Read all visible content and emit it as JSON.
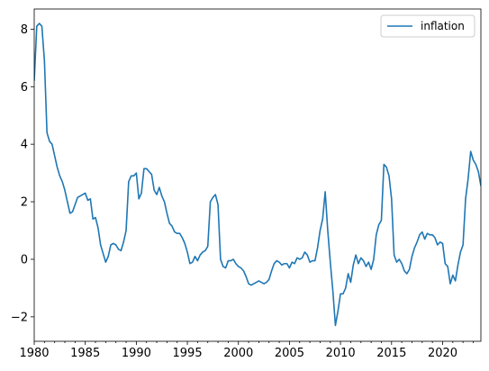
{
  "chart_data": {
    "type": "line",
    "title": "",
    "xlabel": "",
    "ylabel": "",
    "xlim": [
      1980.0,
      2023.75
    ],
    "ylim": [
      -2.85,
      8.7
    ],
    "legend": {
      "position": "top-right",
      "entries": [
        "inflation"
      ]
    },
    "grid": false,
    "x_ticks": [
      1980,
      1985,
      1990,
      1995,
      2000,
      2005,
      2010,
      2015,
      2020
    ],
    "x_tick_labels": [
      "1980",
      "1985",
      "1990",
      "1995",
      "2000",
      "2005",
      "2010",
      "2015",
      "2020"
    ],
    "y_ticks": [
      -2,
      0,
      2,
      4,
      6,
      8
    ],
    "y_tick_labels": [
      "−2",
      "0",
      "2",
      "4",
      "6",
      "8"
    ],
    "series": [
      {
        "name": "inflation",
        "color": "#1f77b4",
        "points": [
          [
            1980.0,
            6.2
          ],
          [
            1980.25,
            8.1
          ],
          [
            1980.5,
            8.2
          ],
          [
            1980.75,
            8.1
          ],
          [
            1981.0,
            6.9
          ],
          [
            1981.25,
            4.4
          ],
          [
            1981.5,
            4.1
          ],
          [
            1981.75,
            4.0
          ],
          [
            1982.0,
            3.6
          ],
          [
            1982.25,
            3.2
          ],
          [
            1982.5,
            2.9
          ],
          [
            1982.75,
            2.7
          ],
          [
            1983.0,
            2.4
          ],
          [
            1983.25,
            2.0
          ],
          [
            1983.5,
            1.6
          ],
          [
            1983.75,
            1.65
          ],
          [
            1984.0,
            1.9
          ],
          [
            1984.25,
            2.15
          ],
          [
            1984.5,
            2.2
          ],
          [
            1984.75,
            2.25
          ],
          [
            1985.0,
            2.3
          ],
          [
            1985.25,
            2.05
          ],
          [
            1985.5,
            2.1
          ],
          [
            1985.75,
            1.4
          ],
          [
            1986.0,
            1.45
          ],
          [
            1986.25,
            1.1
          ],
          [
            1986.5,
            0.5
          ],
          [
            1986.75,
            0.2
          ],
          [
            1987.0,
            -0.1
          ],
          [
            1987.25,
            0.1
          ],
          [
            1987.5,
            0.5
          ],
          [
            1987.75,
            0.55
          ],
          [
            1988.0,
            0.5
          ],
          [
            1988.25,
            0.35
          ],
          [
            1988.5,
            0.3
          ],
          [
            1988.75,
            0.6
          ],
          [
            1989.0,
            1.0
          ],
          [
            1989.25,
            2.7
          ],
          [
            1989.5,
            2.9
          ],
          [
            1989.75,
            2.9
          ],
          [
            1990.0,
            3.0
          ],
          [
            1990.25,
            2.1
          ],
          [
            1990.5,
            2.3
          ],
          [
            1990.75,
            3.15
          ],
          [
            1991.0,
            3.15
          ],
          [
            1991.25,
            3.05
          ],
          [
            1991.5,
            2.95
          ],
          [
            1991.75,
            2.4
          ],
          [
            1992.0,
            2.25
          ],
          [
            1992.25,
            2.5
          ],
          [
            1992.5,
            2.2
          ],
          [
            1992.75,
            2.0
          ],
          [
            1993.0,
            1.6
          ],
          [
            1993.25,
            1.25
          ],
          [
            1993.5,
            1.15
          ],
          [
            1993.75,
            0.95
          ],
          [
            1994.0,
            0.9
          ],
          [
            1994.25,
            0.9
          ],
          [
            1994.5,
            0.75
          ],
          [
            1994.75,
            0.55
          ],
          [
            1995.0,
            0.25
          ],
          [
            1995.25,
            -0.15
          ],
          [
            1995.5,
            -0.1
          ],
          [
            1995.75,
            0.1
          ],
          [
            1996.0,
            -0.05
          ],
          [
            1996.25,
            0.15
          ],
          [
            1996.5,
            0.25
          ],
          [
            1996.75,
            0.3
          ],
          [
            1997.0,
            0.45
          ],
          [
            1997.25,
            2.0
          ],
          [
            1997.5,
            2.15
          ],
          [
            1997.75,
            2.25
          ],
          [
            1998.0,
            1.9
          ],
          [
            1998.25,
            0.0
          ],
          [
            1998.5,
            -0.25
          ],
          [
            1998.75,
            -0.3
          ],
          [
            1999.0,
            -0.05
          ],
          [
            1999.25,
            -0.05
          ],
          [
            1999.5,
            0.0
          ],
          [
            1999.75,
            -0.15
          ],
          [
            2000.0,
            -0.25
          ],
          [
            2000.25,
            -0.3
          ],
          [
            2000.5,
            -0.4
          ],
          [
            2000.75,
            -0.6
          ],
          [
            2001.0,
            -0.85
          ],
          [
            2001.25,
            -0.9
          ],
          [
            2001.5,
            -0.85
          ],
          [
            2001.75,
            -0.8
          ],
          [
            2002.0,
            -0.75
          ],
          [
            2002.25,
            -0.8
          ],
          [
            2002.5,
            -0.85
          ],
          [
            2002.75,
            -0.8
          ],
          [
            2003.0,
            -0.7
          ],
          [
            2003.25,
            -0.4
          ],
          [
            2003.5,
            -0.15
          ],
          [
            2003.75,
            -0.05
          ],
          [
            2004.0,
            -0.1
          ],
          [
            2004.25,
            -0.2
          ],
          [
            2004.5,
            -0.15
          ],
          [
            2004.75,
            -0.15
          ],
          [
            2005.0,
            -0.3
          ],
          [
            2005.25,
            -0.1
          ],
          [
            2005.5,
            -0.15
          ],
          [
            2005.75,
            0.05
          ],
          [
            2006.0,
            0.0
          ],
          [
            2006.25,
            0.05
          ],
          [
            2006.5,
            0.25
          ],
          [
            2006.75,
            0.15
          ],
          [
            2007.0,
            -0.1
          ],
          [
            2007.25,
            -0.05
          ],
          [
            2007.5,
            -0.05
          ],
          [
            2007.75,
            0.4
          ],
          [
            2008.0,
            1.0
          ],
          [
            2008.25,
            1.4
          ],
          [
            2008.5,
            2.35
          ],
          [
            2008.75,
            1.0
          ],
          [
            2009.0,
            -0.1
          ],
          [
            2009.25,
            -1.1
          ],
          [
            2009.5,
            -2.3
          ],
          [
            2009.75,
            -1.8
          ],
          [
            2010.0,
            -1.2
          ],
          [
            2010.25,
            -1.2
          ],
          [
            2010.5,
            -1.0
          ],
          [
            2010.75,
            -0.5
          ],
          [
            2011.0,
            -0.8
          ],
          [
            2011.25,
            -0.2
          ],
          [
            2011.5,
            0.15
          ],
          [
            2011.75,
            -0.15
          ],
          [
            2012.0,
            0.05
          ],
          [
            2012.25,
            -0.05
          ],
          [
            2012.5,
            -0.25
          ],
          [
            2012.75,
            -0.1
          ],
          [
            2013.0,
            -0.35
          ],
          [
            2013.25,
            0.0
          ],
          [
            2013.5,
            0.85
          ],
          [
            2013.75,
            1.2
          ],
          [
            2014.0,
            1.35
          ],
          [
            2014.25,
            3.3
          ],
          [
            2014.5,
            3.2
          ],
          [
            2014.75,
            2.9
          ],
          [
            2015.0,
            2.1
          ],
          [
            2015.25,
            0.15
          ],
          [
            2015.5,
            -0.1
          ],
          [
            2015.75,
            0.0
          ],
          [
            2016.0,
            -0.15
          ],
          [
            2016.25,
            -0.4
          ],
          [
            2016.5,
            -0.5
          ],
          [
            2016.75,
            -0.35
          ],
          [
            2017.0,
            0.1
          ],
          [
            2017.25,
            0.4
          ],
          [
            2017.5,
            0.6
          ],
          [
            2017.75,
            0.85
          ],
          [
            2018.0,
            0.95
          ],
          [
            2018.25,
            0.7
          ],
          [
            2018.5,
            0.9
          ],
          [
            2018.75,
            0.85
          ],
          [
            2019.0,
            0.85
          ],
          [
            2019.25,
            0.75
          ],
          [
            2019.5,
            0.5
          ],
          [
            2019.75,
            0.6
          ],
          [
            2020.0,
            0.55
          ],
          [
            2020.25,
            -0.15
          ],
          [
            2020.5,
            -0.25
          ],
          [
            2020.75,
            -0.85
          ],
          [
            2021.0,
            -0.55
          ],
          [
            2021.25,
            -0.75
          ],
          [
            2021.5,
            -0.2
          ],
          [
            2021.75,
            0.25
          ],
          [
            2022.0,
            0.5
          ],
          [
            2022.25,
            2.1
          ],
          [
            2022.5,
            2.8
          ],
          [
            2022.75,
            3.75
          ],
          [
            2023.0,
            3.45
          ],
          [
            2023.25,
            3.3
          ],
          [
            2023.5,
            3.05
          ],
          [
            2023.75,
            2.55
          ]
        ]
      }
    ]
  }
}
